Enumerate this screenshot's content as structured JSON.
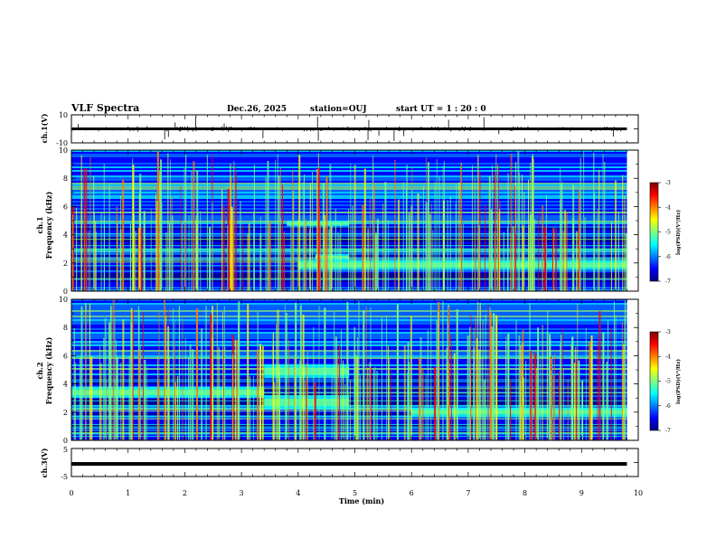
{
  "header": {
    "title": "VLF Spectra",
    "date": "Dec.26, 2025",
    "station": "station=OUJ",
    "start": "start  UT =  1 : 20 : 0"
  },
  "chart_data": [
    {
      "type": "line",
      "ylabel": "ch.1(V)",
      "ylim": [
        -10,
        10
      ],
      "y_tick_labels": [
        "10",
        "-10"
      ],
      "x_range_min": [
        0,
        9.8
      ],
      "baseline_v": 0
    },
    {
      "type": "heatmap",
      "ylabel_channel": "ch.1",
      "ylabel": "Frequency (kHz)",
      "ylim": [
        0,
        10
      ],
      "y_tick_labels": [
        "0",
        "2",
        "4",
        "6",
        "8",
        "10"
      ],
      "x_range_min": [
        0,
        9.8
      ],
      "colorbar": {
        "label": "log(PSD)(V²/Hz)",
        "range": [
          -7,
          -3
        ],
        "tick_labels": [
          "-3",
          "-4",
          "-5",
          "-6",
          "-7"
        ]
      },
      "features": [
        {
          "name": "band",
          "t": [
            3.8,
            4.9
          ],
          "f": [
            4.6,
            5.0
          ]
        },
        {
          "name": "band",
          "t": [
            4.3,
            4.9
          ],
          "f": [
            2.2,
            2.6
          ]
        },
        {
          "name": "band",
          "t": [
            4.0,
            9.8
          ],
          "f": [
            1.5,
            2.2
          ]
        }
      ]
    },
    {
      "type": "heatmap",
      "ylabel_channel": "ch.2",
      "ylabel": "Frequency (kHz)",
      "ylim": [
        0,
        10
      ],
      "y_tick_labels": [
        "0",
        "2",
        "4",
        "6",
        "8",
        "10"
      ],
      "x_range_min": [
        0,
        9.8
      ],
      "colorbar": {
        "label": "log(PSD)(V²/Hz)",
        "range": [
          -7,
          -3
        ],
        "tick_labels": [
          "-3",
          "-4",
          "-5",
          "-6",
          "-7"
        ]
      },
      "features": [
        {
          "name": "band",
          "t": [
            3.4,
            4.9
          ],
          "f": [
            4.4,
            5.4
          ]
        },
        {
          "name": "band",
          "t": [
            3.4,
            4.9
          ],
          "f": [
            2.2,
            3.2
          ]
        },
        {
          "name": "band",
          "t": [
            0.0,
            3.4
          ],
          "f": [
            3.0,
            3.8
          ]
        },
        {
          "name": "band",
          "t": [
            6.0,
            9.8
          ],
          "f": [
            1.7,
            2.3
          ]
        }
      ]
    },
    {
      "type": "line",
      "ylabel": "ch.3(V)",
      "ylim": [
        -5,
        5
      ],
      "y_tick_labels": [
        "5",
        "-5"
      ],
      "x_range_min": [
        0,
        9.8
      ],
      "baseline_v": -0.5
    }
  ],
  "xaxis": {
    "label": "Time (min)",
    "range": [
      0,
      10
    ],
    "tick_labels": [
      "0",
      "1",
      "2",
      "3",
      "4",
      "5",
      "6",
      "7",
      "8",
      "9",
      "10"
    ]
  },
  "colors": {
    "jet": [
      "#00007f",
      "#0000ff",
      "#007fff",
      "#00ffff",
      "#7fff7f",
      "#ffff00",
      "#ff7f00",
      "#ff0000",
      "#7f0000",
      "#ffffff"
    ]
  }
}
